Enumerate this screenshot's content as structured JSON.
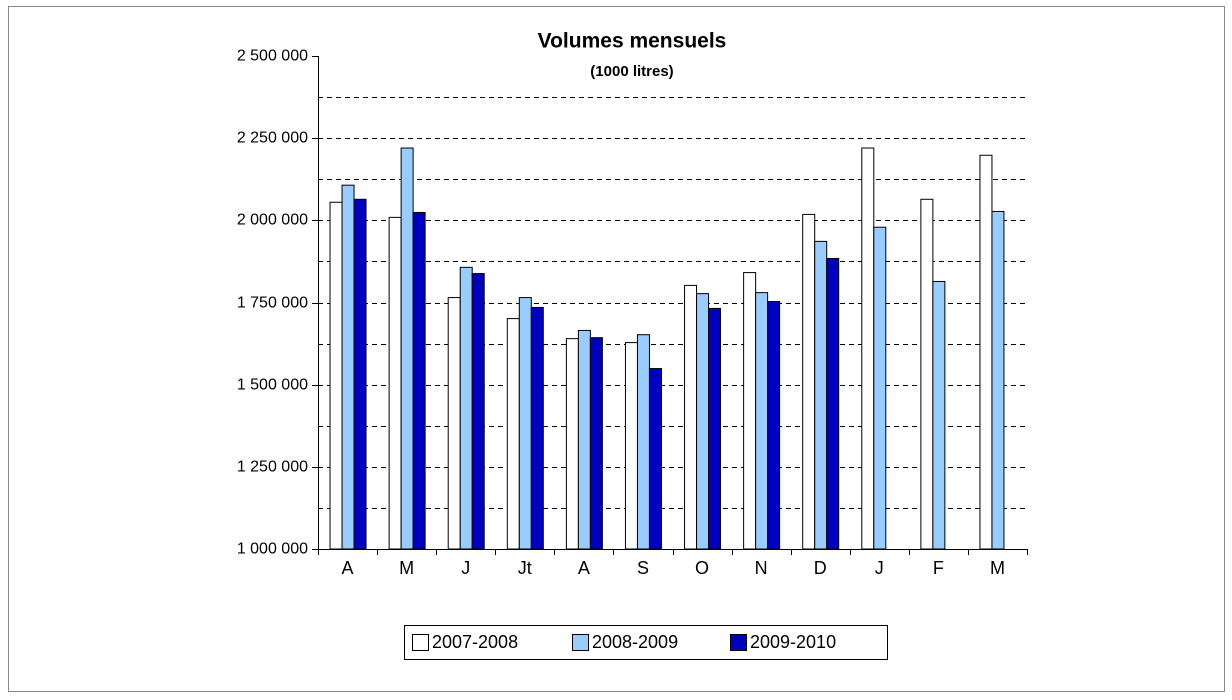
{
  "chart_data": {
    "type": "bar",
    "title": "Volumes mensuels",
    "subtitle": "(1000 litres)",
    "categories": [
      "A",
      "M",
      "J",
      "Jt",
      "A",
      "S",
      "O",
      "N",
      "D",
      "J",
      "F",
      "M"
    ],
    "series": [
      {
        "name": "2007-2008",
        "color": "#ffffff",
        "values": [
          2055000,
          2009000,
          1765000,
          1701000,
          1640000,
          1628000,
          1802000,
          1841000,
          2018000,
          2220000,
          2064000,
          2198000
        ]
      },
      {
        "name": "2008-2009",
        "color": "#99ccff",
        "values": [
          2107000,
          2220000,
          1857000,
          1765000,
          1665000,
          1652000,
          1777000,
          1780000,
          1936000,
          1979000,
          1814000,
          2027000
        ]
      },
      {
        "name": "2009-2010",
        "color": "#0000c0",
        "values": [
          2064000,
          2024000,
          1838000,
          1735000,
          1643000,
          1549000,
          1732000,
          1753000,
          1884000,
          null,
          null,
          null
        ]
      }
    ],
    "ylim": [
      1000000,
      2500000
    ],
    "yticks": [
      {
        "value": 1000000,
        "label": "1 000 000"
      },
      {
        "value": 1250000,
        "label": "1 250 000"
      },
      {
        "value": 1500000,
        "label": "1 500 000"
      },
      {
        "value": 1750000,
        "label": "1 750 000"
      },
      {
        "value": 2000000,
        "label": "2 000 000"
      },
      {
        "value": 2250000,
        "label": "2 250 000"
      },
      {
        "value": 2500000,
        "label": "2 500 000"
      }
    ],
    "ygrid": [
      1125000,
      1250000,
      1375000,
      1500000,
      1625000,
      1750000,
      1875000,
      2000000,
      2125000,
      2250000,
      2375000
    ],
    "grid": true,
    "legend": "bottom"
  }
}
